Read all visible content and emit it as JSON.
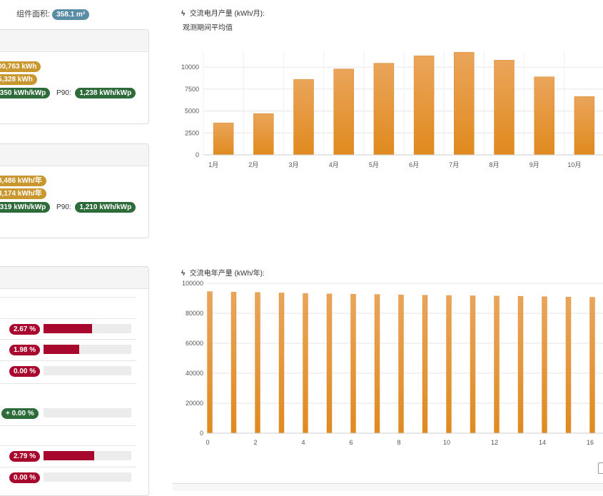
{
  "module_area": {
    "label": "组件面积:",
    "value": "358.1 m²"
  },
  "monthly_panel": {
    "total": "00,763 kWh",
    "second": "5,328 kWh",
    "specific": ",350 kWh/kWp",
    "p90_label": "P90:",
    "p90_value": "1,238 kWh/kWp"
  },
  "yearly_panel": {
    "total": "8,486 kWh/年",
    "second": "3,174 kWh/年",
    "specific": ",319 kWh/kWp",
    "p90_label": "P90:",
    "p90_value": "1,210 kWh/kWp"
  },
  "losses": [
    {
      "value": "2.67 %",
      "fraction": 0.5528,
      "color": "red"
    },
    {
      "value": "1.98 %",
      "fraction": 0.41,
      "color": "red"
    },
    {
      "value": "0.00 %",
      "fraction": 0,
      "color": "red"
    },
    {
      "value": "+ 0.00 %",
      "fraction": 0,
      "color": "green"
    },
    {
      "value": "2.79 %",
      "fraction": 0.577,
      "color": "red"
    },
    {
      "value": "0.00 %",
      "fraction": 0,
      "color": "red"
    }
  ],
  "colors": {
    "bar": "#e08a1e",
    "bar_top": "#eaa55a",
    "grid": "#e6e6e6"
  },
  "icons": {
    "chart_title": "lightning-bolt-icon"
  },
  "chart_data": [
    {
      "type": "bar",
      "title": "交流电月产量 (kWh/月):",
      "subtitle": "观测期间平均值",
      "categories": [
        "1月",
        "2月",
        "3月",
        "4月",
        "5月",
        "6月",
        "7月",
        "8月",
        "9月",
        "10月"
      ],
      "values": [
        3650,
        4700,
        8600,
        9800,
        10450,
        11300,
        11700,
        10800,
        8900,
        6650
      ],
      "yticks": [
        0,
        2500,
        5000,
        7500,
        10000
      ],
      "ylim": [
        0,
        11800
      ],
      "grid": true
    },
    {
      "type": "bar",
      "title": "交流电年产量 (kWh/年):",
      "x": [
        0,
        1,
        2,
        3,
        4,
        5,
        6,
        7,
        8,
        9,
        10,
        11,
        12,
        13,
        14,
        15,
        16
      ],
      "xticks": [
        0,
        2,
        4,
        6,
        8,
        10,
        12,
        14,
        16
      ],
      "values": [
        94500,
        94200,
        93900,
        93600,
        93300,
        93000,
        92800,
        92600,
        92300,
        92100,
        91900,
        91700,
        91500,
        91300,
        91100,
        90900,
        90700
      ],
      "yticks": [
        0,
        20000,
        40000,
        60000,
        80000,
        100000
      ],
      "ylim": [
        0,
        100000
      ],
      "grid": true
    }
  ]
}
